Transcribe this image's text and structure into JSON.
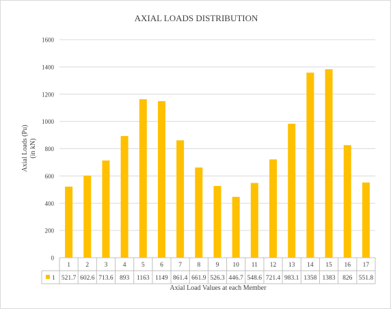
{
  "chart_data": {
    "type": "bar",
    "title": "AXIAL LOADS DISTRIBUTION",
    "ylabel": "Axial  Loads  (Pu)",
    "ylabel_unit": "(in kN)",
    "xlabel": "Axial  Load  Values  at each  Member",
    "categories": [
      "1",
      "2",
      "3",
      "4",
      "5",
      "6",
      "7",
      "8",
      "9",
      "10",
      "11",
      "12",
      "13",
      "14",
      "15",
      "16",
      "17"
    ],
    "series": [
      {
        "name": "1",
        "color": "#FFC000",
        "values": [
          521.7,
          602.6,
          713.6,
          893,
          1163,
          1149,
          861.4,
          661.9,
          526.3,
          446.7,
          548.6,
          721.4,
          983.1,
          1358,
          1383,
          826,
          551.8
        ],
        "value_labels": [
          "521.7",
          "602.6",
          "713.6",
          "893",
          "1163",
          "1149",
          "861.4",
          "661.9",
          "526.3",
          "446.7",
          "548.6",
          "721.4",
          "983.1",
          "1358",
          "1383",
          "826",
          "551.8"
        ]
      }
    ],
    "ylim": [
      0,
      1600
    ],
    "yticks": [
      0,
      200,
      400,
      600,
      800,
      1000,
      1200,
      1400,
      1600
    ],
    "grid": true,
    "legend": "data-table"
  }
}
